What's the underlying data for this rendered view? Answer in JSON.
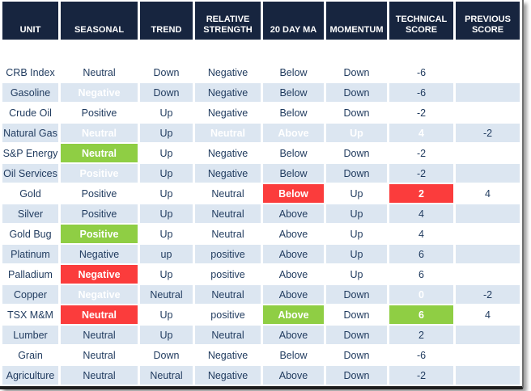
{
  "colors": {
    "header_bg": "#17253f",
    "cell_text": "#1f3a5e",
    "alt_row_bg": "#dce6f1",
    "highlight_red": "#fb3c3c",
    "highlight_green": "#8fce44"
  },
  "table": {
    "columns": [
      "UNIT",
      "SEASONAL",
      "TREND",
      "RELATIVE STRENGTH",
      "20 DAY MA",
      "MOMENTUM",
      "TECHNICAL SCORE",
      "PREVIOUS SCORE"
    ],
    "rows": [
      {
        "alt": false,
        "tall": true,
        "cells": [
          {
            "t": "CRB Index"
          },
          {
            "t": "Neutral"
          },
          {
            "t": "Down"
          },
          {
            "t": "Negative"
          },
          {
            "t": "Below"
          },
          {
            "t": "Down"
          },
          {
            "t": "-6"
          },
          {
            "t": ""
          }
        ]
      },
      {
        "alt": true,
        "cells": [
          {
            "t": "Gasoline"
          },
          {
            "t": "Negative",
            "bg": "red"
          },
          {
            "t": "Down"
          },
          {
            "t": "Negative"
          },
          {
            "t": "Below"
          },
          {
            "t": "Down"
          },
          {
            "t": "-6"
          },
          {
            "t": ""
          }
        ]
      },
      {
        "alt": false,
        "cells": [
          {
            "t": "Crude Oil"
          },
          {
            "t": "Positive"
          },
          {
            "t": "Up"
          },
          {
            "t": "Negative"
          },
          {
            "t": "Below"
          },
          {
            "t": "Down"
          },
          {
            "t": "-2"
          },
          {
            "t": ""
          }
        ]
      },
      {
        "alt": true,
        "cells": [
          {
            "t": "Natural Gas"
          },
          {
            "t": "Neutral",
            "bg": "green"
          },
          {
            "t": "Up"
          },
          {
            "t": "Neutral",
            "bg": "green"
          },
          {
            "t": "Above",
            "bg": "green"
          },
          {
            "t": "Up",
            "bg": "green"
          },
          {
            "t": "4",
            "bg": "green"
          },
          {
            "t": "-2"
          }
        ]
      },
      {
        "alt": false,
        "cells": [
          {
            "t": "S&P Energy"
          },
          {
            "t": "Neutral",
            "bg": "green"
          },
          {
            "t": "Up"
          },
          {
            "t": "Negative"
          },
          {
            "t": "Below"
          },
          {
            "t": "Down"
          },
          {
            "t": "-2"
          },
          {
            "t": ""
          }
        ]
      },
      {
        "alt": true,
        "cells": [
          {
            "t": "Oil Services"
          },
          {
            "t": "Positive",
            "bg": "green"
          },
          {
            "t": "Up"
          },
          {
            "t": "Negative"
          },
          {
            "t": "Below"
          },
          {
            "t": "Down"
          },
          {
            "t": "-2"
          },
          {
            "t": ""
          }
        ]
      },
      {
        "alt": false,
        "cells": [
          {
            "t": "Gold"
          },
          {
            "t": "Positive"
          },
          {
            "t": "Up"
          },
          {
            "t": "Neutral"
          },
          {
            "t": "Below",
            "bg": "red"
          },
          {
            "t": "Up"
          },
          {
            "t": "2",
            "bg": "red"
          },
          {
            "t": "4"
          }
        ]
      },
      {
        "alt": true,
        "cells": [
          {
            "t": "Silver"
          },
          {
            "t": "Positive"
          },
          {
            "t": "Up"
          },
          {
            "t": "Neutral"
          },
          {
            "t": "Above"
          },
          {
            "t": "Up"
          },
          {
            "t": "4"
          },
          {
            "t": ""
          }
        ]
      },
      {
        "alt": false,
        "cells": [
          {
            "t": "Gold Bug"
          },
          {
            "t": "Positive",
            "bg": "green"
          },
          {
            "t": "Up"
          },
          {
            "t": "Neutral"
          },
          {
            "t": "Above"
          },
          {
            "t": "Up"
          },
          {
            "t": "4"
          },
          {
            "t": ""
          }
        ]
      },
      {
        "alt": true,
        "cells": [
          {
            "t": "Platinum"
          },
          {
            "t": "Negative"
          },
          {
            "t": "up"
          },
          {
            "t": "positive"
          },
          {
            "t": "Above"
          },
          {
            "t": "Up"
          },
          {
            "t": "6"
          },
          {
            "t": ""
          }
        ]
      },
      {
        "alt": false,
        "cells": [
          {
            "t": "Palladium"
          },
          {
            "t": "Negative",
            "bg": "red"
          },
          {
            "t": "Up"
          },
          {
            "t": "positive"
          },
          {
            "t": "Above"
          },
          {
            "t": "Up"
          },
          {
            "t": "6"
          },
          {
            "t": ""
          }
        ]
      },
      {
        "alt": true,
        "cells": [
          {
            "t": "Copper"
          },
          {
            "t": "Negative",
            "bg": "red"
          },
          {
            "t": "Neutral"
          },
          {
            "t": "Neutral"
          },
          {
            "t": "Above"
          },
          {
            "t": "Down"
          },
          {
            "t": "0",
            "bg": "red"
          },
          {
            "t": "-2"
          }
        ]
      },
      {
        "alt": false,
        "cells": [
          {
            "t": "TSX M&M"
          },
          {
            "t": "Neutral",
            "bg": "red"
          },
          {
            "t": "Up"
          },
          {
            "t": "positive"
          },
          {
            "t": "Above",
            "bg": "green"
          },
          {
            "t": "Down"
          },
          {
            "t": "6",
            "bg": "green"
          },
          {
            "t": "4"
          }
        ]
      },
      {
        "alt": true,
        "cells": [
          {
            "t": "Lumber"
          },
          {
            "t": "Neutral"
          },
          {
            "t": "Up"
          },
          {
            "t": "Neutral"
          },
          {
            "t": "Above"
          },
          {
            "t": "Down"
          },
          {
            "t": "2"
          },
          {
            "t": ""
          }
        ]
      },
      {
        "alt": false,
        "cells": [
          {
            "t": "Grain"
          },
          {
            "t": "Neutral"
          },
          {
            "t": "Down"
          },
          {
            "t": "Negative"
          },
          {
            "t": "Below"
          },
          {
            "t": "Down"
          },
          {
            "t": "-6"
          },
          {
            "t": ""
          }
        ]
      },
      {
        "alt": true,
        "cells": [
          {
            "t": "Agriculture"
          },
          {
            "t": "Neutral"
          },
          {
            "t": "Neutral"
          },
          {
            "t": "Negative"
          },
          {
            "t": "Above"
          },
          {
            "t": "Down"
          },
          {
            "t": "-2"
          },
          {
            "t": ""
          }
        ]
      }
    ]
  }
}
